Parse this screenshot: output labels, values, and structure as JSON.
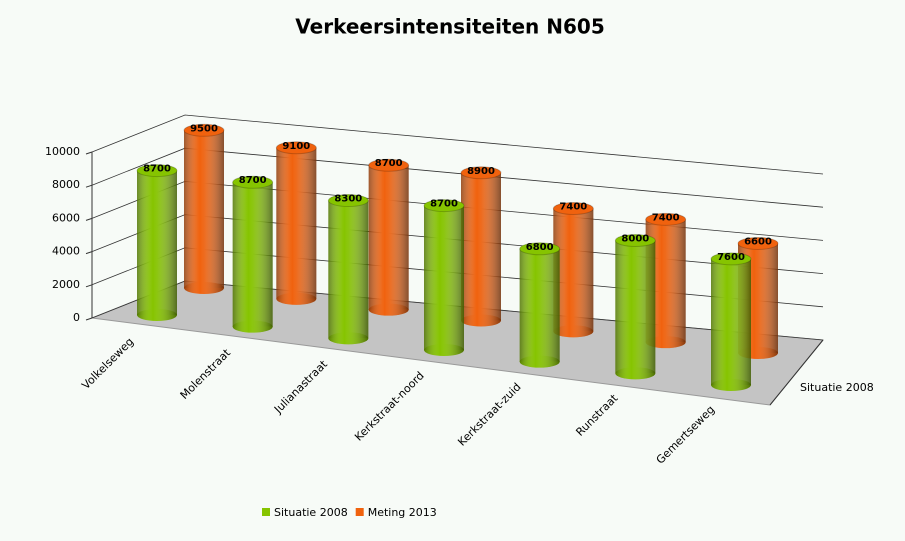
{
  "chart_data": {
    "type": "bar3d",
    "title": "Verkeersintensiteiten N605",
    "categories": [
      "Volkelseweg",
      "Molenstraat",
      "Julianastraat",
      "Kerkstraat-noord",
      "Kerkstraat-zuid",
      "Runstraat",
      "Gemertseweg"
    ],
    "series": [
      {
        "name": "Situatie 2008",
        "color": "#86c400",
        "values": [
          8700,
          8700,
          8300,
          8700,
          6800,
          8000,
          7600
        ]
      },
      {
        "name": "Meting 2013",
        "color": "#f0620e",
        "values": [
          9500,
          9100,
          8700,
          8900,
          7400,
          7400,
          6600
        ]
      }
    ],
    "depth_categories": [
      "Situatie 2008"
    ],
    "ylim": [
      0,
      10000
    ],
    "yticks": [
      0,
      2000,
      4000,
      6000,
      8000,
      10000
    ],
    "grid": true
  }
}
